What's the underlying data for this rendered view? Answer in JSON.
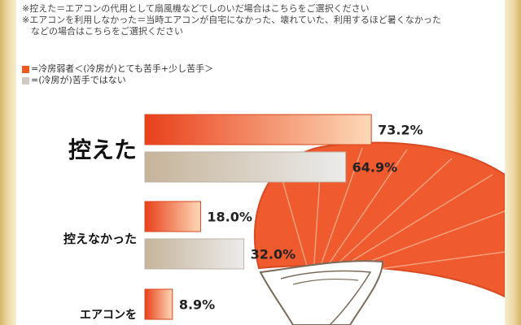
{
  "notes": [
    "※控えた＝エアコンの代用として扇風機などでしのいだ場合はこちらをご選択ください",
    "※エアコンを利用しなかった＝当時エアコンが自宅になかった、壊れていた、利用するほど暑くなかった",
    "　などの場合はこちらをご選択ください"
  ],
  "colors": {
    "series1": "#f05a1e",
    "series2": "#cfcac5",
    "fan": "#ef5a2e"
  },
  "chart_data": {
    "type": "bar",
    "orientation": "horizontal",
    "categories": [
      "控えた",
      "控えなかった",
      "エアコンを"
    ],
    "series": [
      {
        "name": "冷房弱者＜(冷房が)とても苦手＋少し苦手＞",
        "legend_label": "=冷房弱者＜(冷房が)とても苦手+少し苦手＞",
        "values": [
          73.2,
          18.0,
          8.9
        ]
      },
      {
        "name": "(冷房が)苦手ではない",
        "legend_label": "=(冷房が)苦手ではない",
        "values": [
          64.9,
          32.0,
          null
        ]
      }
    ],
    "value_labels": [
      [
        "73.2%",
        "18.0%",
        "8.9%"
      ],
      [
        "64.9%",
        "32.0%",
        ""
      ]
    ],
    "unit": "%",
    "xlim": [
      0,
      100
    ],
    "grid": false,
    "legend_position": "top-left"
  }
}
